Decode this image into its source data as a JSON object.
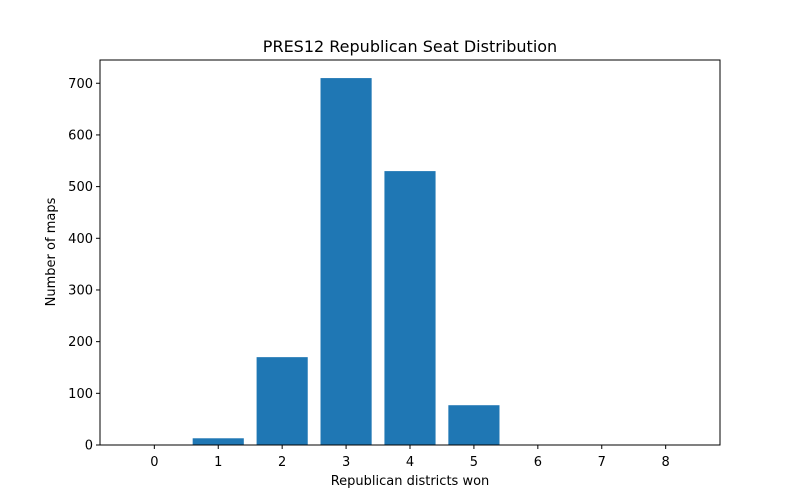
{
  "chart_data": {
    "type": "bar",
    "title": "PRES12 Republican Seat Distribution",
    "xlabel": "Republican districts won",
    "ylabel": "Number of maps",
    "categories": [
      "0",
      "1",
      "2",
      "3",
      "4",
      "5",
      "6",
      "7",
      "8"
    ],
    "values": [
      0,
      13,
      170,
      710,
      530,
      77,
      0,
      0,
      0
    ],
    "ylim": [
      0,
      745
    ],
    "yticks": [
      0,
      100,
      200,
      300,
      400,
      500,
      600,
      700
    ],
    "xlim": [
      -0.85,
      8.85
    ],
    "grid": false,
    "legend": "none",
    "bar_color": "#1f77b4"
  }
}
